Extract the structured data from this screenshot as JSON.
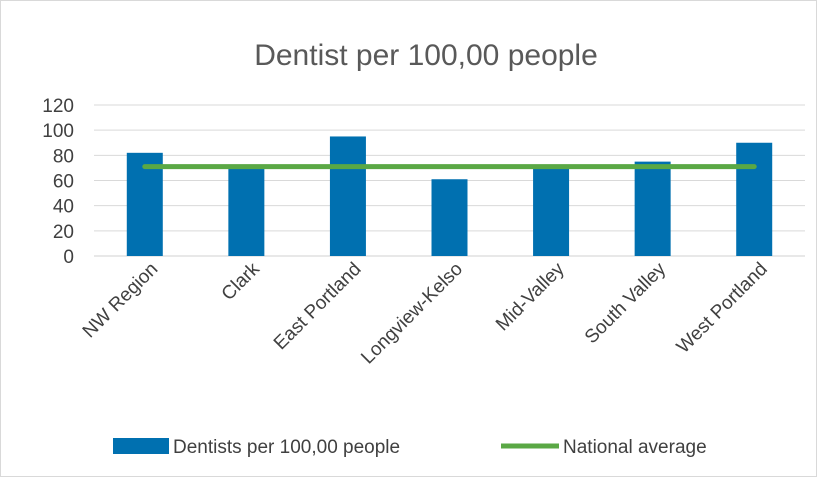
{
  "chart_data": {
    "type": "bar",
    "title": "Dentist per 100,00 people",
    "categories": [
      "NW Region",
      "Clark",
      "East Portland",
      "Longview-Kelso",
      "Mid-Valley",
      "South Valley",
      "West Portland"
    ],
    "series": [
      {
        "name": "Dentists per 100,00 people",
        "type": "bar",
        "color": "#0070b0",
        "values": [
          82,
          71,
          95,
          61,
          71,
          75,
          90
        ]
      },
      {
        "name": "National average",
        "type": "line",
        "color": "#5aa845",
        "values": [
          71,
          71,
          71,
          71,
          71,
          71,
          71
        ]
      }
    ],
    "ylim": [
      0,
      120
    ],
    "yticks": [
      "0",
      "20",
      "40",
      "60",
      "80",
      "100",
      "120"
    ],
    "grid": true,
    "legend_position": "bottom"
  }
}
